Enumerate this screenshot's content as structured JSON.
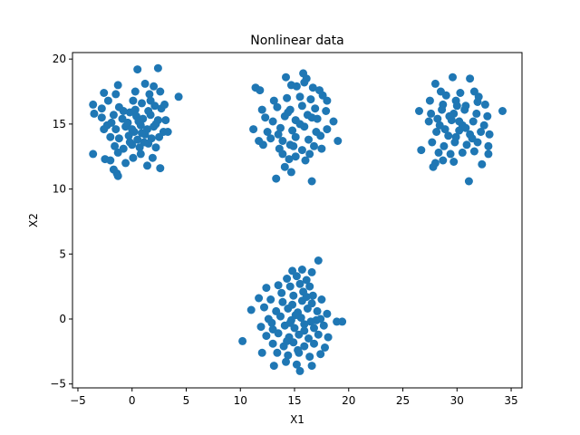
{
  "chart_data": {
    "type": "scatter",
    "title": "Nonlinear data",
    "xlabel": "X1",
    "ylabel": "X2",
    "xlim": [
      -5.5,
      36
    ],
    "ylim": [
      -5.3,
      20.5
    ],
    "xticks": [
      -5,
      0,
      5,
      10,
      15,
      20,
      25,
      30,
      35
    ],
    "yticks": [
      -5,
      0,
      5,
      10,
      15,
      20
    ],
    "grid": false,
    "legend": "none",
    "color": "#1f77b4",
    "series": [
      {
        "points": [
          [
            0.5,
            19.2
          ],
          [
            2.4,
            19.3
          ],
          [
            1.2,
            18.1
          ],
          [
            2.0,
            17.9
          ],
          [
            -1.3,
            18.0
          ],
          [
            -2.6,
            17.4
          ],
          [
            -2.2,
            16.8
          ],
          [
            -1.5,
            17.3
          ],
          [
            0.3,
            17.5
          ],
          [
            1.6,
            17.3
          ],
          [
            2.6,
            17.5
          ],
          [
            4.3,
            17.1
          ],
          [
            -3.6,
            16.5
          ],
          [
            -2.8,
            16.2
          ],
          [
            -1.2,
            16.3
          ],
          [
            0.1,
            16.8
          ],
          [
            0.9,
            16.6
          ],
          [
            1.7,
            16.8
          ],
          [
            2.1,
            16.4
          ],
          [
            2.7,
            16.2
          ],
          [
            3.0,
            16.5
          ],
          [
            -3.5,
            15.8
          ],
          [
            -2.8,
            15.5
          ],
          [
            -1.7,
            15.7
          ],
          [
            -0.9,
            15.4
          ],
          [
            -0.2,
            15.9
          ],
          [
            0.4,
            15.6
          ],
          [
            1.0,
            15.4
          ],
          [
            1.7,
            15.7
          ],
          [
            2.4,
            15.3
          ],
          [
            3.1,
            15.3
          ],
          [
            -2.3,
            14.9
          ],
          [
            -1.5,
            14.6
          ],
          [
            -0.6,
            14.8
          ],
          [
            0.2,
            14.4
          ],
          [
            0.8,
            14.9
          ],
          [
            1.4,
            14.6
          ],
          [
            2.0,
            14.8
          ],
          [
            2.9,
            14.4
          ],
          [
            3.3,
            14.4
          ],
          [
            -2.0,
            14.0
          ],
          [
            -1.2,
            13.9
          ],
          [
            -0.3,
            14.1
          ],
          [
            0.5,
            13.8
          ],
          [
            1.2,
            14.2
          ],
          [
            1.8,
            13.9
          ],
          [
            2.5,
            14.0
          ],
          [
            -1.6,
            13.3
          ],
          [
            -0.8,
            13.1
          ],
          [
            0.0,
            13.4
          ],
          [
            0.7,
            13.2
          ],
          [
            1.5,
            13.5
          ],
          [
            2.2,
            13.2
          ],
          [
            -3.6,
            12.7
          ],
          [
            -2.5,
            12.3
          ],
          [
            -1.3,
            12.8
          ],
          [
            0.1,
            12.4
          ],
          [
            0.8,
            12.7
          ],
          [
            1.9,
            12.4
          ],
          [
            -2.0,
            12.2
          ],
          [
            -0.6,
            12.0
          ],
          [
            1.4,
            11.8
          ],
          [
            2.6,
            11.6
          ],
          [
            -1.7,
            11.5
          ],
          [
            -1.4,
            11.2
          ],
          [
            -1.3,
            11.0
          ],
          [
            -0.4,
            15.1
          ],
          [
            0.6,
            15.2
          ],
          [
            0.0,
            14.6
          ],
          [
            0.9,
            14.3
          ],
          [
            -0.2,
            13.6
          ],
          [
            1.1,
            13.6
          ],
          [
            0.3,
            16.1
          ],
          [
            -0.8,
            16.0
          ],
          [
            1.5,
            16.0
          ],
          [
            -1.9,
            15.1
          ],
          [
            -2.6,
            14.6
          ],
          [
            2.2,
            15.0
          ],
          [
            14.2,
            18.6
          ],
          [
            15.8,
            18.9
          ],
          [
            16.1,
            18.5
          ],
          [
            11.4,
            17.8
          ],
          [
            11.8,
            17.6
          ],
          [
            14.7,
            18.0
          ],
          [
            15.2,
            17.9
          ],
          [
            16.7,
            17.8
          ],
          [
            17.3,
            17.6
          ],
          [
            15.9,
            18.2
          ],
          [
            13.1,
            16.8
          ],
          [
            14.3,
            17.0
          ],
          [
            15.5,
            17.1
          ],
          [
            16.5,
            16.9
          ],
          [
            17.6,
            17.2
          ],
          [
            18.0,
            16.8
          ],
          [
            12.0,
            16.1
          ],
          [
            13.4,
            16.3
          ],
          [
            14.6,
            16.1
          ],
          [
            15.7,
            16.4
          ],
          [
            16.9,
            16.2
          ],
          [
            17.9,
            16.0
          ],
          [
            12.3,
            15.5
          ],
          [
            13.0,
            15.2
          ],
          [
            14.1,
            15.6
          ],
          [
            15.1,
            15.3
          ],
          [
            16.2,
            15.7
          ],
          [
            17.1,
            15.4
          ],
          [
            18.6,
            15.2
          ],
          [
            11.2,
            14.6
          ],
          [
            12.5,
            14.4
          ],
          [
            13.7,
            14.7
          ],
          [
            14.8,
            14.5
          ],
          [
            15.9,
            14.8
          ],
          [
            17.0,
            14.4
          ],
          [
            18.0,
            14.6
          ],
          [
            12.8,
            13.9
          ],
          [
            13.9,
            13.7
          ],
          [
            15.1,
            14.0
          ],
          [
            16.3,
            13.8
          ],
          [
            17.4,
            14.1
          ],
          [
            19.0,
            13.7
          ],
          [
            12.1,
            13.4
          ],
          [
            13.6,
            13.1
          ],
          [
            14.6,
            13.4
          ],
          [
            15.7,
            13.0
          ],
          [
            16.8,
            13.3
          ],
          [
            17.5,
            13.1
          ],
          [
            13.9,
            12.7
          ],
          [
            15.1,
            12.5
          ],
          [
            16.4,
            12.7
          ],
          [
            16.0,
            12.2
          ],
          [
            14.5,
            12.3
          ],
          [
            14.1,
            11.7
          ],
          [
            14.7,
            11.3
          ],
          [
            13.3,
            10.8
          ],
          [
            16.6,
            10.6
          ],
          [
            11.7,
            13.7
          ],
          [
            14.4,
            15.9
          ],
          [
            15.5,
            15.0
          ],
          [
            16.6,
            15.5
          ],
          [
            13.5,
            14.2
          ],
          [
            14.9,
            13.3
          ],
          [
            28.0,
            18.1
          ],
          [
            29.6,
            18.6
          ],
          [
            31.2,
            18.5
          ],
          [
            28.5,
            17.5
          ],
          [
            29.0,
            17.2
          ],
          [
            30.3,
            17.4
          ],
          [
            31.6,
            17.5
          ],
          [
            32.0,
            17.1
          ],
          [
            27.5,
            16.8
          ],
          [
            28.7,
            16.5
          ],
          [
            29.9,
            16.8
          ],
          [
            30.8,
            16.4
          ],
          [
            31.9,
            16.7
          ],
          [
            32.6,
            16.5
          ],
          [
            26.5,
            16.0
          ],
          [
            27.6,
            15.8
          ],
          [
            28.6,
            16.1
          ],
          [
            29.7,
            15.8
          ],
          [
            30.7,
            16.1
          ],
          [
            31.8,
            15.8
          ],
          [
            32.8,
            15.6
          ],
          [
            34.2,
            16.0
          ],
          [
            27.4,
            15.2
          ],
          [
            28.4,
            14.9
          ],
          [
            29.5,
            15.3
          ],
          [
            30.5,
            14.9
          ],
          [
            31.5,
            15.2
          ],
          [
            32.5,
            14.9
          ],
          [
            28.1,
            14.4
          ],
          [
            29.2,
            14.1
          ],
          [
            30.2,
            14.5
          ],
          [
            31.2,
            14.2
          ],
          [
            32.2,
            14.4
          ],
          [
            33.0,
            14.2
          ],
          [
            27.7,
            13.6
          ],
          [
            28.8,
            13.3
          ],
          [
            29.8,
            13.6
          ],
          [
            30.9,
            13.4
          ],
          [
            31.9,
            13.6
          ],
          [
            32.9,
            13.3
          ],
          [
            26.7,
            13.0
          ],
          [
            28.3,
            12.8
          ],
          [
            29.4,
            12.7
          ],
          [
            30.5,
            12.8
          ],
          [
            31.6,
            12.9
          ],
          [
            32.9,
            12.7
          ],
          [
            28.0,
            12.0
          ],
          [
            28.7,
            12.2
          ],
          [
            29.7,
            12.1
          ],
          [
            32.3,
            11.9
          ],
          [
            27.8,
            11.7
          ],
          [
            31.1,
            10.6
          ],
          [
            29.3,
            15.6
          ],
          [
            30.2,
            15.2
          ],
          [
            30.8,
            14.7
          ],
          [
            29.9,
            14.0
          ],
          [
            28.9,
            14.6
          ],
          [
            31.4,
            13.9
          ],
          [
            30.0,
            16.4
          ],
          [
            28.2,
            15.4
          ],
          [
            17.2,
            4.5
          ],
          [
            14.8,
            3.7
          ],
          [
            15.7,
            3.8
          ],
          [
            16.6,
            3.6
          ],
          [
            14.3,
            3.1
          ],
          [
            15.2,
            3.3
          ],
          [
            16.1,
            3.0
          ],
          [
            13.5,
            2.6
          ],
          [
            14.6,
            2.5
          ],
          [
            15.5,
            2.7
          ],
          [
            16.4,
            2.5
          ],
          [
            12.4,
            2.4
          ],
          [
            13.8,
            2.0
          ],
          [
            14.9,
            1.8
          ],
          [
            15.8,
            2.1
          ],
          [
            16.7,
            1.8
          ],
          [
            11.7,
            1.6
          ],
          [
            12.8,
            1.5
          ],
          [
            13.9,
            1.3
          ],
          [
            14.8,
            1.1
          ],
          [
            15.7,
            1.4
          ],
          [
            16.6,
            1.2
          ],
          [
            17.5,
            1.5
          ],
          [
            11.0,
            0.7
          ],
          [
            12.2,
            0.9
          ],
          [
            13.3,
            0.6
          ],
          [
            14.4,
            0.8
          ],
          [
            15.3,
            0.5
          ],
          [
            16.2,
            0.8
          ],
          [
            17.1,
            0.6
          ],
          [
            18.0,
            0.4
          ],
          [
            12.6,
            0.0
          ],
          [
            13.7,
            0.2
          ],
          [
            14.7,
            -0.1
          ],
          [
            15.6,
            0.1
          ],
          [
            16.5,
            -0.2
          ],
          [
            17.4,
            0.0
          ],
          [
            18.9,
            -0.2
          ],
          [
            19.4,
            -0.2
          ],
          [
            11.9,
            -0.6
          ],
          [
            13.0,
            -0.8
          ],
          [
            14.1,
            -0.5
          ],
          [
            15.0,
            -0.7
          ],
          [
            15.9,
            -0.4
          ],
          [
            16.8,
            -0.7
          ],
          [
            17.7,
            -0.5
          ],
          [
            12.4,
            -1.3
          ],
          [
            13.5,
            -1.1
          ],
          [
            14.5,
            -1.4
          ],
          [
            15.4,
            -1.2
          ],
          [
            16.3,
            -1.5
          ],
          [
            17.2,
            -1.2
          ],
          [
            18.1,
            -1.4
          ],
          [
            10.2,
            -1.7
          ],
          [
            13.0,
            -1.9
          ],
          [
            14.0,
            -2.1
          ],
          [
            14.9,
            -1.8
          ],
          [
            15.9,
            -2.1
          ],
          [
            16.8,
            -1.9
          ],
          [
            17.8,
            -2.2
          ],
          [
            12.0,
            -2.6
          ],
          [
            13.4,
            -2.6
          ],
          [
            14.4,
            -2.8
          ],
          [
            15.4,
            -2.6
          ],
          [
            16.4,
            -2.9
          ],
          [
            17.4,
            -2.7
          ],
          [
            13.1,
            -3.6
          ],
          [
            14.2,
            -3.3
          ],
          [
            15.2,
            -3.5
          ],
          [
            15.5,
            -4.0
          ],
          [
            16.6,
            -3.6
          ],
          [
            15.1,
            0.3
          ],
          [
            14.6,
            -0.3
          ],
          [
            15.9,
            -0.9
          ],
          [
            14.3,
            -1.7
          ],
          [
            16.1,
            1.7
          ],
          [
            15.3,
            -2.4
          ],
          [
            12.9,
            -0.3
          ],
          [
            17.0,
            -0.1
          ]
        ]
      }
    ]
  }
}
